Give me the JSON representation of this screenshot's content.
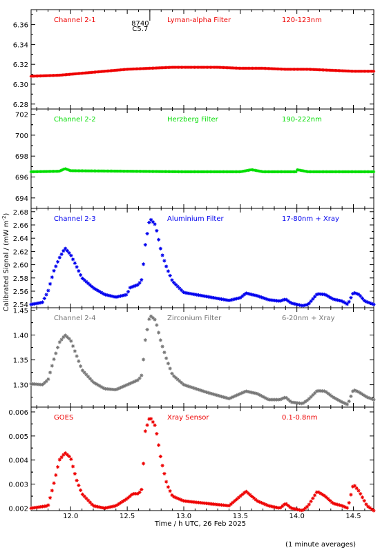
{
  "figure": {
    "ylabel": "Calibrated Signal / (mW m",
    "ylabel_sup": "-2",
    "ylabel_end": ")",
    "xlabel": "Time / h UTC, 26 Feb 2025",
    "footnote": "(1 minute averages)",
    "event_label_1": "8740",
    "event_label_2": "C5.7",
    "event_time": 12.7
  },
  "chart_data": [
    {
      "type": "scatter",
      "label": "Channel 2-1",
      "filter": "Lyman-alpha Filter",
      "band": "120-123nm",
      "color": "#ee0000",
      "ylim": [
        6.275,
        6.375
      ],
      "yticks": [
        6.28,
        6.3,
        6.32,
        6.34,
        6.36
      ],
      "ytick_labels": [
        "6.28",
        "6.30",
        "6.32",
        "6.34",
        "6.36"
      ],
      "points": [
        [
          11.65,
          6.308
        ],
        [
          11.9,
          6.309
        ],
        [
          12.1,
          6.311
        ],
        [
          12.3,
          6.313
        ],
        [
          12.5,
          6.315
        ],
        [
          12.7,
          6.316
        ],
        [
          12.9,
          6.317
        ],
        [
          13.1,
          6.317
        ],
        [
          13.3,
          6.317
        ],
        [
          13.5,
          6.316
        ],
        [
          13.7,
          6.316
        ],
        [
          13.9,
          6.315
        ],
        [
          14.1,
          6.315
        ],
        [
          14.3,
          6.314
        ],
        [
          14.5,
          6.313
        ],
        [
          14.68,
          6.313
        ]
      ],
      "interp": true,
      "marker": "dense"
    },
    {
      "type": "scatter",
      "label": "Channel 2-2",
      "filter": "Herzberg Filter",
      "band": "190-222nm",
      "color": "#00dd00",
      "ylim": [
        693,
        702.5
      ],
      "yticks": [
        694,
        696,
        698,
        700,
        702
      ],
      "ytick_labels": [
        "694",
        "696",
        "698",
        "700",
        "702"
      ],
      "points": [
        [
          11.65,
          696.5
        ],
        [
          11.9,
          696.55
        ],
        [
          11.95,
          696.8
        ],
        [
          12.0,
          696.6
        ],
        [
          12.5,
          696.55
        ],
        [
          13.0,
          696.5
        ],
        [
          13.5,
          696.5
        ],
        [
          13.6,
          696.7
        ],
        [
          13.7,
          696.5
        ],
        [
          14.0,
          696.5
        ],
        [
          14.0,
          696.7
        ],
        [
          14.1,
          696.5
        ],
        [
          14.68,
          696.5
        ]
      ],
      "interp": true,
      "marker": "dense"
    },
    {
      "type": "scatter",
      "label": "Channel 2-3",
      "filter": "Aluminium Filter",
      "band": "17-80nm + Xray",
      "color": "#0000ee",
      "ylim": [
        2.535,
        2.685
      ],
      "yticks": [
        2.54,
        2.56,
        2.58,
        2.6,
        2.62,
        2.64,
        2.66,
        2.68
      ],
      "ytick_labels": [
        "2.54",
        "2.56",
        "2.58",
        "2.60",
        "2.62",
        "2.64",
        "2.66",
        "2.68"
      ],
      "points": [
        [
          11.65,
          2.54
        ],
        [
          11.75,
          2.543
        ],
        [
          11.8,
          2.56
        ],
        [
          11.85,
          2.59
        ],
        [
          11.9,
          2.61
        ],
        [
          11.95,
          2.625
        ],
        [
          12.0,
          2.615
        ],
        [
          12.05,
          2.598
        ],
        [
          12.1,
          2.58
        ],
        [
          12.2,
          2.565
        ],
        [
          12.3,
          2.555
        ],
        [
          12.4,
          2.551
        ],
        [
          12.5,
          2.555
        ],
        [
          12.52,
          2.565
        ],
        [
          12.6,
          2.57
        ],
        [
          12.63,
          2.578
        ],
        [
          12.66,
          2.63
        ],
        [
          12.7,
          2.67
        ],
        [
          12.75,
          2.66
        ],
        [
          12.8,
          2.62
        ],
        [
          12.85,
          2.595
        ],
        [
          12.9,
          2.575
        ],
        [
          13.0,
          2.558
        ],
        [
          13.2,
          2.552
        ],
        [
          13.4,
          2.546
        ],
        [
          13.5,
          2.55
        ],
        [
          13.55,
          2.557
        ],
        [
          13.65,
          2.553
        ],
        [
          13.75,
          2.547
        ],
        [
          13.85,
          2.545
        ],
        [
          13.9,
          2.548
        ],
        [
          13.95,
          2.542
        ],
        [
          14.05,
          2.538
        ],
        [
          14.1,
          2.54
        ],
        [
          14.18,
          2.556
        ],
        [
          14.25,
          2.555
        ],
        [
          14.32,
          2.548
        ],
        [
          14.4,
          2.545
        ],
        [
          14.45,
          2.54
        ],
        [
          14.5,
          2.558
        ],
        [
          14.55,
          2.555
        ],
        [
          14.6,
          2.545
        ],
        [
          14.68,
          2.54
        ]
      ],
      "interp": false
    },
    {
      "type": "scatter",
      "label": "Channel 2-4",
      "filter": "Zirconium Filter",
      "band": "6-20nm + Xray",
      "color": "#777777",
      "ylim": [
        1.255,
        1.455
      ],
      "yticks": [
        1.3,
        1.35,
        1.4,
        1.45
      ],
      "ytick_labels": [
        "1.30",
        "1.35",
        "1.40",
        "1.45"
      ],
      "points": [
        [
          11.65,
          1.302
        ],
        [
          11.75,
          1.3
        ],
        [
          11.8,
          1.31
        ],
        [
          11.85,
          1.35
        ],
        [
          11.9,
          1.385
        ],
        [
          11.95,
          1.4
        ],
        [
          12.0,
          1.39
        ],
        [
          12.05,
          1.36
        ],
        [
          12.1,
          1.33
        ],
        [
          12.2,
          1.305
        ],
        [
          12.3,
          1.292
        ],
        [
          12.4,
          1.29
        ],
        [
          12.5,
          1.3
        ],
        [
          12.6,
          1.31
        ],
        [
          12.63,
          1.32
        ],
        [
          12.66,
          1.39
        ],
        [
          12.7,
          1.44
        ],
        [
          12.75,
          1.43
        ],
        [
          12.8,
          1.385
        ],
        [
          12.85,
          1.35
        ],
        [
          12.9,
          1.32
        ],
        [
          13.0,
          1.3
        ],
        [
          13.2,
          1.285
        ],
        [
          13.4,
          1.272
        ],
        [
          13.5,
          1.282
        ],
        [
          13.55,
          1.287
        ],
        [
          13.65,
          1.282
        ],
        [
          13.75,
          1.27
        ],
        [
          13.85,
          1.27
        ],
        [
          13.9,
          1.275
        ],
        [
          13.95,
          1.265
        ],
        [
          14.05,
          1.262
        ],
        [
          14.1,
          1.27
        ],
        [
          14.18,
          1.288
        ],
        [
          14.25,
          1.287
        ],
        [
          14.32,
          1.275
        ],
        [
          14.4,
          1.265
        ],
        [
          14.45,
          1.26
        ],
        [
          14.5,
          1.29
        ],
        [
          14.55,
          1.285
        ],
        [
          14.62,
          1.275
        ],
        [
          14.68,
          1.27
        ]
      ],
      "interp": false
    },
    {
      "type": "scatter",
      "label": "GOES",
      "filter": "Xray Sensor",
      "band": "0.1-0.8nm",
      "color": "#ee0000",
      "ylim": [
        0.0019,
        0.0062
      ],
      "yticks": [
        0.002,
        0.003,
        0.004,
        0.005,
        0.006
      ],
      "ytick_labels": [
        "0.002",
        "0.003",
        "0.004",
        "0.005",
        "0.006"
      ],
      "points": [
        [
          11.65,
          0.002
        ],
        [
          11.8,
          0.0021
        ],
        [
          11.85,
          0.003
        ],
        [
          11.9,
          0.004
        ],
        [
          11.95,
          0.0043
        ],
        [
          12.0,
          0.0041
        ],
        [
          12.05,
          0.0032
        ],
        [
          12.1,
          0.0026
        ],
        [
          12.2,
          0.0021
        ],
        [
          12.3,
          0.002
        ],
        [
          12.4,
          0.0021
        ],
        [
          12.5,
          0.0024
        ],
        [
          12.55,
          0.0026
        ],
        [
          12.6,
          0.0026
        ],
        [
          12.63,
          0.0028
        ],
        [
          12.66,
          0.0052
        ],
        [
          12.7,
          0.0058
        ],
        [
          12.75,
          0.0054
        ],
        [
          12.8,
          0.004
        ],
        [
          12.85,
          0.003
        ],
        [
          12.9,
          0.0025
        ],
        [
          13.0,
          0.0023
        ],
        [
          13.2,
          0.0022
        ],
        [
          13.4,
          0.0021
        ],
        [
          13.5,
          0.0025
        ],
        [
          13.55,
          0.0027
        ],
        [
          13.65,
          0.0023
        ],
        [
          13.75,
          0.0021
        ],
        [
          13.85,
          0.002
        ],
        [
          13.9,
          0.0022
        ],
        [
          13.95,
          0.002
        ],
        [
          14.05,
          0.0019
        ],
        [
          14.1,
          0.0021
        ],
        [
          14.18,
          0.0027
        ],
        [
          14.25,
          0.0025
        ],
        [
          14.32,
          0.0022
        ],
        [
          14.4,
          0.0021
        ],
        [
          14.45,
          0.002
        ],
        [
          14.5,
          0.003
        ],
        [
          14.55,
          0.0027
        ],
        [
          14.62,
          0.0021
        ],
        [
          14.68,
          0.0019
        ]
      ],
      "interp": false
    }
  ],
  "xaxis": {
    "xlim": [
      11.65,
      14.68
    ],
    "ticks": [
      12.0,
      12.5,
      13.0,
      13.5,
      14.0,
      14.5
    ],
    "tick_labels": [
      "12.0",
      "12.5",
      "13.0",
      "13.5",
      "14.0",
      "14.5"
    ],
    "minor_step": 0.1
  }
}
